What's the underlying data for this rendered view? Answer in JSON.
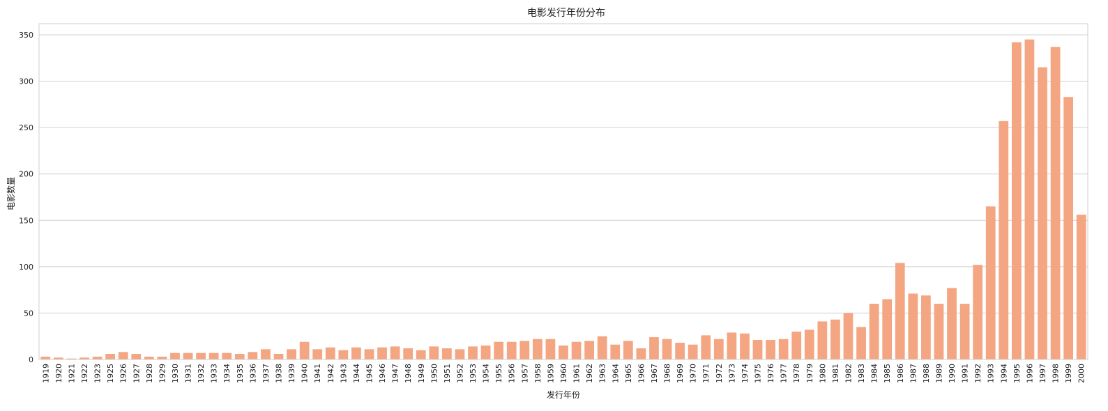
{
  "chart_data": {
    "type": "bar",
    "title": "电影发行年份分布",
    "xlabel": "发行年份",
    "ylabel": "电影数量",
    "ylim": [
      0,
      362
    ],
    "yticks": [
      0,
      50,
      100,
      150,
      200,
      250,
      300,
      350
    ],
    "grid": "horizontal",
    "bar_color": "#f4a582",
    "categories": [
      "1919",
      "1920",
      "1921",
      "1922",
      "1923",
      "1925",
      "1926",
      "1927",
      "1928",
      "1929",
      "1930",
      "1931",
      "1932",
      "1933",
      "1934",
      "1935",
      "1936",
      "1937",
      "1938",
      "1939",
      "1940",
      "1941",
      "1942",
      "1943",
      "1944",
      "1945",
      "1946",
      "1947",
      "1948",
      "1949",
      "1950",
      "1951",
      "1952",
      "1953",
      "1954",
      "1955",
      "1956",
      "1957",
      "1958",
      "1959",
      "1960",
      "1961",
      "1962",
      "1963",
      "1964",
      "1965",
      "1966",
      "1967",
      "1968",
      "1969",
      "1970",
      "1971",
      "1972",
      "1973",
      "1974",
      "1975",
      "1976",
      "1977",
      "1978",
      "1979",
      "1980",
      "1981",
      "1982",
      "1983",
      "1984",
      "1985",
      "1986",
      "1987",
      "1988",
      "1989",
      "1990",
      "1991",
      "1992",
      "1993",
      "1994",
      "1995",
      "1996",
      "1997",
      "1998",
      "1999",
      "2000"
    ],
    "values": [
      3,
      2,
      1,
      2,
      3,
      6,
      8,
      6,
      3,
      3,
      7,
      7,
      7,
      7,
      7,
      6,
      8,
      11,
      6,
      11,
      19,
      11,
      13,
      10,
      13,
      11,
      13,
      14,
      12,
      10,
      14,
      12,
      11,
      14,
      15,
      19,
      19,
      20,
      22,
      22,
      15,
      19,
      20,
      25,
      16,
      20,
      12,
      24,
      22,
      18,
      16,
      26,
      22,
      29,
      28,
      21,
      21,
      22,
      30,
      32,
      41,
      43,
      50,
      35,
      60,
      65,
      104,
      71,
      69,
      60,
      77,
      60,
      102,
      165,
      257,
      342,
      345,
      315,
      337,
      283,
      156
    ]
  }
}
